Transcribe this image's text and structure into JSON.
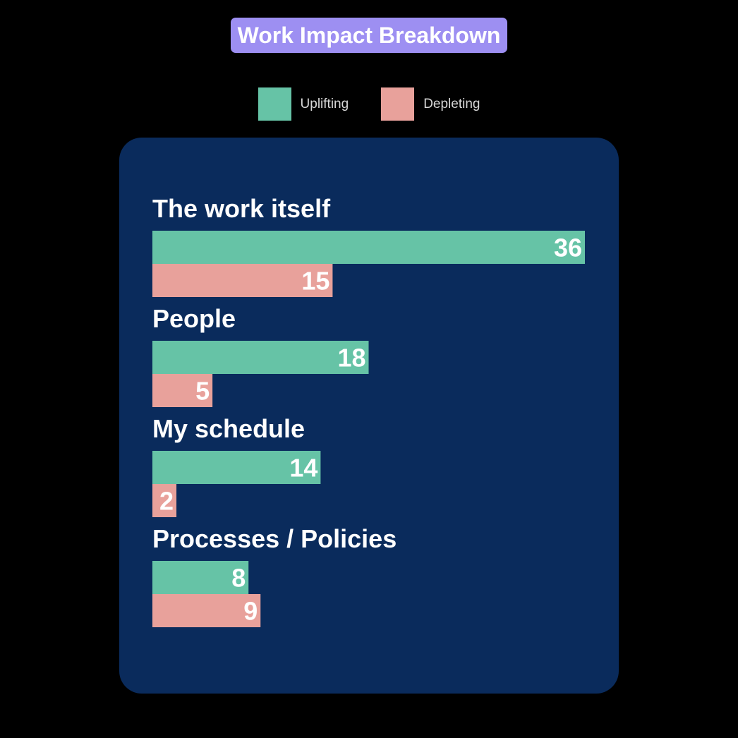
{
  "colors": {
    "background": "#000000",
    "panel": "#0a2b5c",
    "title_bg": "#9d8ff2",
    "uplifting": "#66c3a6",
    "depleting": "#e8a19b"
  },
  "chart_data": {
    "type": "bar",
    "orientation": "horizontal",
    "title": "Work Impact Breakdown",
    "categories": [
      "The work itself",
      "People",
      "My schedule",
      "Processes / Policies"
    ],
    "series": [
      {
        "name": "Uplifting",
        "values": [
          36,
          18,
          14,
          8
        ]
      },
      {
        "name": "Depleting",
        "values": [
          15,
          5,
          2,
          9
        ]
      }
    ],
    "xlim": [
      0,
      36
    ],
    "legend_position": "top-center",
    "grid": false,
    "data_labels": true
  }
}
